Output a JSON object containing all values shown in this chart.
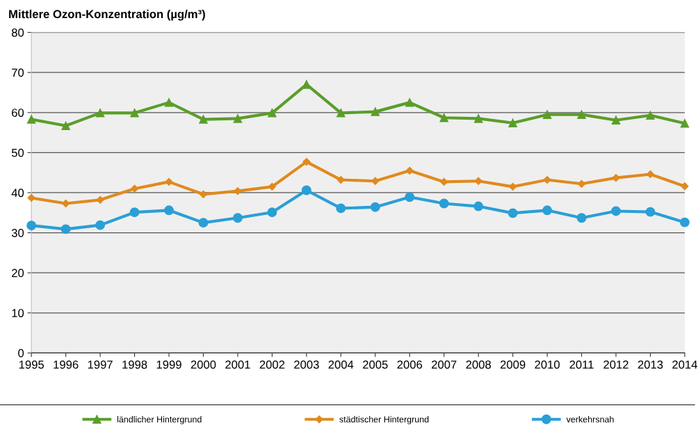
{
  "chart_data": {
    "type": "line",
    "title": "Mittlere Ozon-Konzentration (µg/m³)",
    "x": [
      1995,
      1996,
      1997,
      1998,
      1999,
      2000,
      2001,
      2002,
      2003,
      2004,
      2005,
      2006,
      2007,
      2008,
      2009,
      2010,
      2011,
      2012,
      2013,
      2014
    ],
    "series": [
      {
        "name": "ländlicher Hintergrund",
        "color": "#5a9e2a",
        "marker": "triangle",
        "values": [
          58.3,
          56.7,
          59.9,
          59.9,
          62.5,
          58.3,
          58.5,
          59.9,
          67.0,
          59.9,
          60.2,
          62.5,
          58.7,
          58.5,
          57.4,
          59.5,
          59.5,
          58.1,
          59.3,
          57.3
        ]
      },
      {
        "name": "städtischer Hintergrund",
        "color": "#e08a1e",
        "marker": "diamond",
        "values": [
          38.7,
          37.3,
          38.2,
          41.0,
          42.7,
          39.6,
          40.4,
          41.5,
          47.7,
          43.2,
          42.9,
          45.5,
          42.7,
          42.9,
          41.5,
          43.2,
          42.2,
          43.7,
          44.6,
          41.6
        ]
      },
      {
        "name": "verkehrsnah",
        "color": "#2a9fd6",
        "marker": "circle",
        "values": [
          31.8,
          30.9,
          31.9,
          35.1,
          35.6,
          32.5,
          33.7,
          35.1,
          40.6,
          36.1,
          36.4,
          38.9,
          37.3,
          36.6,
          34.9,
          35.6,
          33.7,
          35.4,
          35.2,
          32.6
        ]
      }
    ],
    "xlim": [
      1995,
      2014
    ],
    "xticks": [
      1995,
      1996,
      1997,
      1998,
      1999,
      2000,
      2001,
      2002,
      2003,
      2004,
      2005,
      2006,
      2007,
      2008,
      2009,
      2010,
      2011,
      2012,
      2013,
      2014
    ],
    "ylim": [
      0,
      80
    ],
    "yticks": [
      0,
      10,
      20,
      30,
      40,
      50,
      60,
      70,
      80
    ],
    "grid": "y",
    "legend": "bottom",
    "line_style": "solid"
  }
}
